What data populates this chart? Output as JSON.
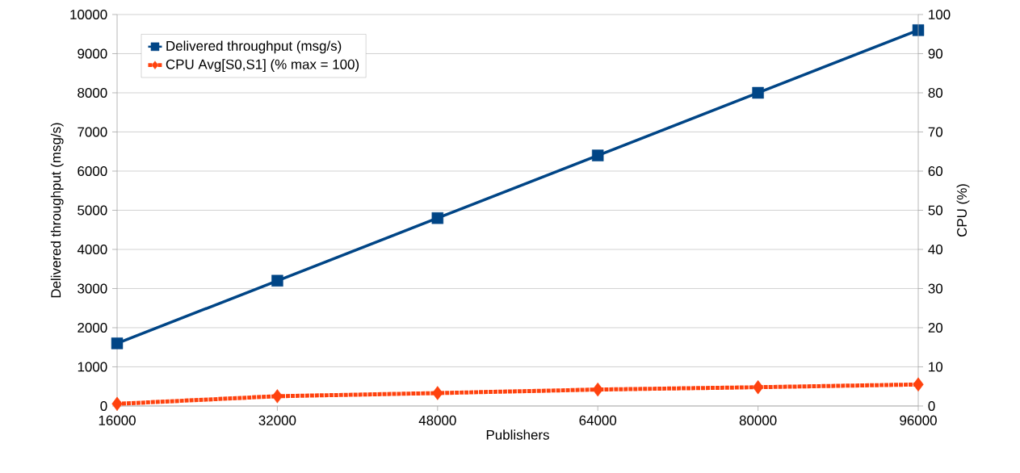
{
  "chart_data": {
    "type": "line",
    "xlabel": "Publishers",
    "ylabel": "Delivered throughput (msg/s)",
    "y2label": "CPU (%)",
    "x": [
      16000,
      32000,
      48000,
      64000,
      80000,
      96000
    ],
    "series": [
      {
        "name": "Delivered throughput (msg/s)",
        "color": "#004586",
        "values": [
          1600,
          3200,
          4800,
          6400,
          8000,
          9600
        ],
        "marker": "square",
        "line_style": "solid"
      },
      {
        "name": "CPU Avg[S0,S1] (% max = 100)",
        "color": "#ff420e",
        "values": [
          0.55,
          2.5,
          3.3,
          4.2,
          4.8,
          5.5
        ],
        "axis": "y2",
        "marker": "diamond",
        "line_style": "dotted"
      }
    ],
    "xlim": [
      16000,
      96000
    ],
    "xticks": [
      16000,
      32000,
      48000,
      64000,
      80000,
      96000
    ],
    "ylim": [
      0,
      10000
    ],
    "yticks": [
      0,
      1000,
      2000,
      3000,
      4000,
      5000,
      6000,
      7000,
      8000,
      9000,
      10000
    ],
    "y2lim": [
      0,
      100
    ],
    "y2ticks": [
      0,
      10,
      20,
      30,
      40,
      50,
      60,
      70,
      80,
      90,
      100
    ],
    "grid": "y",
    "legend": "top left"
  }
}
